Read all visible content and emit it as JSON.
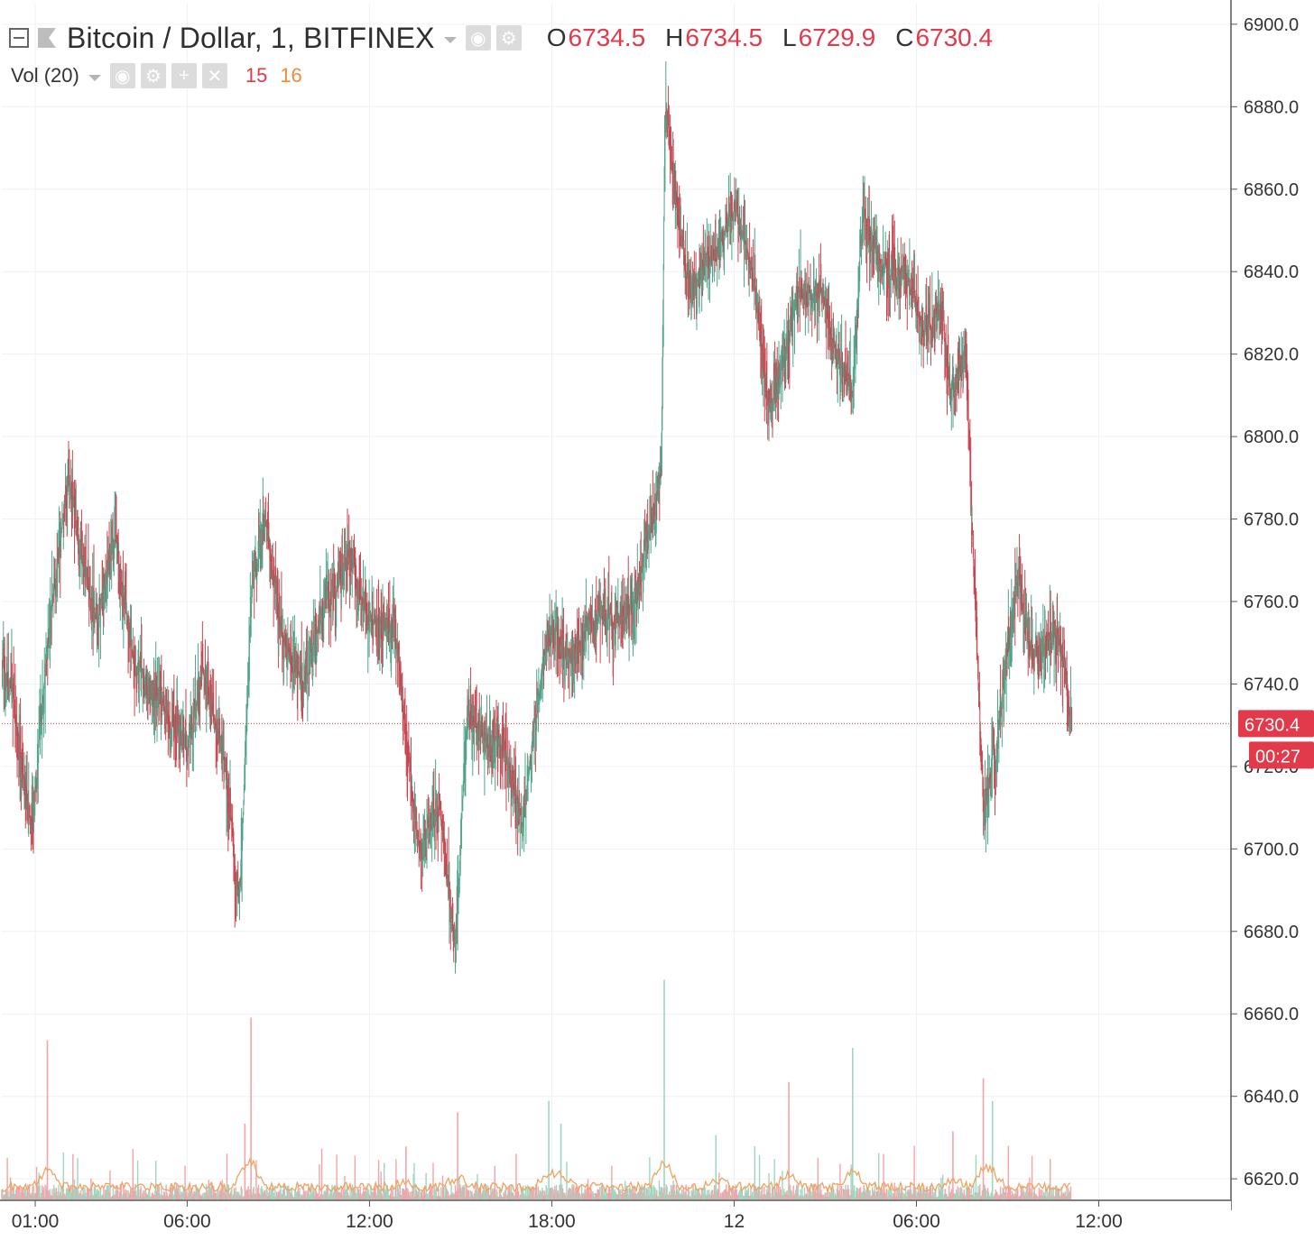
{
  "header": {
    "symbol_title": "Bitcoin / Dollar, 1, BITFINEX",
    "ohlc": [
      {
        "key": "O",
        "value": "6734.5"
      },
      {
        "key": "H",
        "value": "6734.5"
      },
      {
        "key": "L",
        "value": "6729.9"
      },
      {
        "key": "C",
        "value": "6730.4"
      }
    ],
    "volume_indicator": "Vol (20)",
    "volume_values": [
      {
        "value": "15",
        "color": "#e2394b"
      },
      {
        "value": "16",
        "color": "#f08a3c"
      }
    ],
    "icons": [
      "collapse-icon",
      "flag-icon",
      "eye-icon",
      "gear-icon",
      "plus-icon",
      "close-icon"
    ]
  },
  "colors": {
    "up": "#4fa58a",
    "down": "#c84650",
    "volume_up": "#9fd6c2",
    "volume_down": "#f4a4a8",
    "volume_ma": "#f0a35f",
    "grid": "#eef1f5",
    "price_line": "#e2394b",
    "axis_text": "#333333",
    "label_bg": "#e2394b"
  },
  "price_axis": {
    "current_price_label": "6730.4",
    "countdown_label": "00:27"
  },
  "chart_data": {
    "type": "candlestick",
    "interval": "1 minute",
    "ylim": [
      6615,
      6905
    ],
    "y_ticks": [
      "6620.0",
      "6640.0",
      "6660.0",
      "6680.0",
      "6700.0",
      "6720.0",
      "6740.0",
      "6760.0",
      "6780.0",
      "6800.0",
      "6820.0",
      "6840.0",
      "6860.0",
      "6880.0",
      "6900.0"
    ],
    "x_ticks": [
      {
        "label": "01:00",
        "t": 3.0
      },
      {
        "label": "06:00",
        "t": 8.0
      },
      {
        "label": "12:00",
        "t": 14.0
      },
      {
        "label": "18:00",
        "t": 20.0
      },
      {
        "label": "12",
        "t": 26.0
      },
      {
        "label": "06:00",
        "t": 32.0
      },
      {
        "label": "12:00",
        "t": 38.0
      }
    ],
    "xlim": [
      1.9,
      42.35
    ],
    "last_price": 6730.4,
    "grid": true,
    "price_path": [
      [
        1.9,
        6745
      ],
      [
        2.3,
        6735
      ],
      [
        2.6,
        6715
      ],
      [
        2.9,
        6705
      ],
      [
        3.2,
        6735
      ],
      [
        3.6,
        6765
      ],
      [
        4.1,
        6790
      ],
      [
        4.5,
        6770
      ],
      [
        5.0,
        6755
      ],
      [
        5.6,
        6775
      ],
      [
        6.2,
        6745
      ],
      [
        7.2,
        6735
      ],
      [
        8.0,
        6725
      ],
      [
        8.5,
        6745
      ],
      [
        9.2,
        6720
      ],
      [
        9.7,
        6685
      ],
      [
        10.1,
        6765
      ],
      [
        10.6,
        6780
      ],
      [
        11.1,
        6750
      ],
      [
        11.8,
        6740
      ],
      [
        12.5,
        6760
      ],
      [
        13.3,
        6770
      ],
      [
        14.0,
        6755
      ],
      [
        14.8,
        6755
      ],
      [
        15.6,
        6700
      ],
      [
        16.3,
        6710
      ],
      [
        16.8,
        6675
      ],
      [
        17.2,
        6735
      ],
      [
        17.8,
        6725
      ],
      [
        18.4,
        6725
      ],
      [
        19.0,
        6705
      ],
      [
        19.4,
        6730
      ],
      [
        19.9,
        6755
      ],
      [
        20.6,
        6745
      ],
      [
        21.3,
        6755
      ],
      [
        22.0,
        6755
      ],
      [
        22.7,
        6760
      ],
      [
        23.3,
        6780
      ],
      [
        23.6,
        6795
      ],
      [
        23.7,
        6885
      ],
      [
        24.0,
        6860
      ],
      [
        24.5,
        6835
      ],
      [
        25.3,
        6845
      ],
      [
        26.0,
        6855
      ],
      [
        26.6,
        6840
      ],
      [
        27.1,
        6805
      ],
      [
        27.6,
        6820
      ],
      [
        28.1,
        6835
      ],
      [
        28.9,
        6835
      ],
      [
        29.3,
        6820
      ],
      [
        29.9,
        6810
      ],
      [
        30.2,
        6855
      ],
      [
        30.6,
        6845
      ],
      [
        31.0,
        6840
      ],
      [
        31.7,
        6840
      ],
      [
        32.2,
        6825
      ],
      [
        32.8,
        6830
      ],
      [
        33.1,
        6810
      ],
      [
        33.6,
        6820
      ],
      [
        34.0,
        6740
      ],
      [
        34.2,
        6710
      ],
      [
        34.6,
        6725
      ],
      [
        35.0,
        6750
      ],
      [
        35.3,
        6765
      ],
      [
        35.7,
        6750
      ],
      [
        36.1,
        6745
      ],
      [
        36.5,
        6755
      ],
      [
        36.8,
        6745
      ],
      [
        37.1,
        6730
      ]
    ],
    "volume": {
      "base_level": 2,
      "ma_level": 3,
      "spikes": [
        {
          "t": 3.4,
          "v": 42,
          "dir": "down"
        },
        {
          "t": 9.9,
          "v": 20,
          "dir": "down"
        },
        {
          "t": 10.1,
          "v": 48,
          "dir": "down"
        },
        {
          "t": 15.2,
          "v": 14,
          "dir": "down"
        },
        {
          "t": 16.9,
          "v": 23,
          "dir": "down"
        },
        {
          "t": 19.9,
          "v": 26,
          "dir": "up"
        },
        {
          "t": 20.3,
          "v": 20,
          "dir": "up"
        },
        {
          "t": 23.7,
          "v": 58,
          "dir": "up"
        },
        {
          "t": 25.4,
          "v": 17,
          "dir": "up"
        },
        {
          "t": 27.8,
          "v": 31,
          "dir": "down"
        },
        {
          "t": 29.9,
          "v": 40,
          "dir": "up"
        },
        {
          "t": 34.2,
          "v": 32,
          "dir": "down"
        },
        {
          "t": 34.5,
          "v": 26,
          "dir": "up"
        },
        {
          "t": 33.2,
          "v": 18,
          "dir": "down"
        }
      ]
    }
  }
}
